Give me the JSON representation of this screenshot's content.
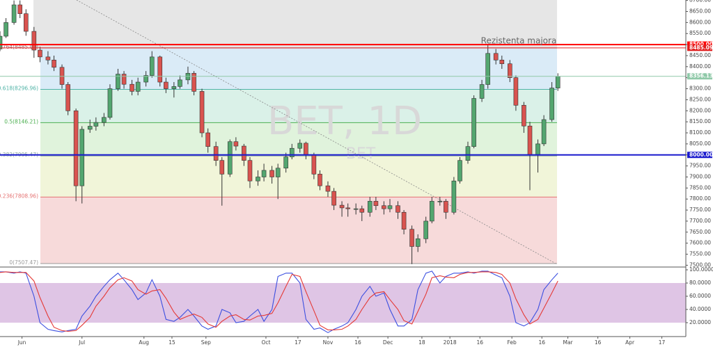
{
  "chart_data": [
    {
      "type": "candlestick",
      "title": "BET, 1D",
      "subtitle": "BET",
      "annotation": "Rezistenta majora",
      "up_color": "#53a66f",
      "down_color": "#d9534f",
      "x": [
        "2017-05-21",
        "2017-05-24",
        "2017-05-28",
        "2017-05-31",
        "2017-06-03",
        "2017-06-07",
        "2017-06-10",
        "2017-06-14",
        "2017-06-17",
        "2017-06-21",
        "2017-06-24",
        "2017-06-28",
        "2017-07-01",
        "2017-07-05",
        "2017-07-08",
        "2017-07-12",
        "2017-07-15",
        "2017-07-19",
        "2017-07-22",
        "2017-07-26",
        "2017-07-29",
        "2017-08-02",
        "2017-08-05",
        "2017-08-09",
        "2017-08-12",
        "2017-08-16",
        "2017-08-19",
        "2017-08-23",
        "2017-08-26",
        "2017-08-30",
        "2017-09-02",
        "2017-09-06",
        "2017-09-09",
        "2017-09-13",
        "2017-09-16",
        "2017-09-20",
        "2017-09-23",
        "2017-09-27",
        "2017-09-30",
        "2017-10-04",
        "2017-10-07",
        "2017-10-11",
        "2017-10-14",
        "2017-10-18",
        "2017-10-21",
        "2017-10-25",
        "2017-10-28",
        "2017-11-01",
        "2017-11-04",
        "2017-11-08",
        "2017-11-11",
        "2017-11-15",
        "2017-11-18",
        "2017-11-22",
        "2017-11-25",
        "2017-11-29",
        "2017-12-02",
        "2017-12-06",
        "2017-12-09",
        "2017-12-13",
        "2017-12-16",
        "2017-12-20",
        "2017-12-23",
        "2017-12-27",
        "2017-12-30",
        "2018-01-03",
        "2018-01-06",
        "2018-01-10",
        "2018-01-13",
        "2018-01-17",
        "2018-01-20",
        "2018-01-24",
        "2018-01-27",
        "2018-01-31",
        "2018-02-03",
        "2018-02-07",
        "2018-02-10",
        "2018-02-14",
        "2018-02-17",
        "2018-02-21",
        "2018-02-24"
      ],
      "open": [
        8480,
        8538,
        8600,
        8680,
        8640,
        8560,
        8475,
        8444,
        8430,
        8397,
        8319,
        8200,
        7860,
        8116,
        8130,
        8147,
        8170,
        8300,
        8366,
        8320,
        8288,
        8330,
        8360,
        8444,
        8330,
        8300,
        8310,
        8340,
        8370,
        8288,
        8100,
        8038,
        7975,
        7913,
        8060,
        8040,
        7975,
        7882,
        7900,
        7930,
        7900,
        7940,
        7991,
        8030,
        8053,
        8000,
        7913,
        7860,
        7835,
        7772,
        7760,
        7756,
        7756,
        7740,
        7790,
        7770,
        7756,
        7770,
        7740,
        7663,
        7585,
        7620,
        7700,
        7790,
        7790,
        7740,
        7882,
        7975,
        8038,
        8256,
        8319,
        8460,
        8430,
        8413,
        8350,
        8225,
        8131,
        8000,
        8050,
        8160,
        8303
      ],
      "high": [
        8560,
        8620,
        8700,
        8700,
        8660,
        8580,
        8490,
        8470,
        8450,
        8410,
        8330,
        8210,
        8130,
        8160,
        8170,
        8190,
        8320,
        8390,
        8380,
        8340,
        8350,
        8380,
        8470,
        8450,
        8350,
        8330,
        8360,
        8400,
        8380,
        8300,
        8120,
        8060,
        7990,
        8070,
        8080,
        8050,
        7990,
        7930,
        7960,
        7950,
        7960,
        8010,
        8050,
        8070,
        8060,
        8010,
        7930,
        7880,
        7850,
        7790,
        7780,
        7780,
        7770,
        7810,
        7810,
        7790,
        7800,
        7790,
        7750,
        7680,
        7640,
        7720,
        7810,
        7810,
        7800,
        7900,
        7990,
        8060,
        8270,
        8340,
        8500,
        8480,
        8450,
        8430,
        8360,
        8240,
        8150,
        8070,
        8180,
        8330,
        8370
      ],
      "low": [
        8470,
        8530,
        8590,
        8620,
        8540,
        8440,
        8420,
        8410,
        8380,
        8300,
        8180,
        7790,
        7780,
        8100,
        8110,
        8130,
        8160,
        8290,
        8300,
        8270,
        8270,
        8310,
        8350,
        8310,
        8280,
        8260,
        8300,
        8320,
        8270,
        8080,
        8010,
        7950,
        7770,
        7900,
        8020,
        7950,
        7850,
        7860,
        7880,
        7870,
        7800,
        7920,
        7980,
        8010,
        7980,
        7890,
        7840,
        7810,
        7750,
        7720,
        7720,
        7730,
        7700,
        7720,
        7750,
        7730,
        7740,
        7710,
        7640,
        7505,
        7560,
        7600,
        7690,
        7770,
        7710,
        7730,
        7870,
        7960,
        8030,
        8240,
        8300,
        8410,
        8390,
        8330,
        8200,
        8100,
        7840,
        7920,
        8040,
        8150,
        8290
      ],
      "close": [
        8538,
        8600,
        8680,
        8640,
        8560,
        8475,
        8444,
        8430,
        8397,
        8319,
        8200,
        7860,
        8116,
        8130,
        8147,
        8170,
        8300,
        8366,
        8320,
        8288,
        8330,
        8360,
        8444,
        8330,
        8300,
        8310,
        8340,
        8370,
        8288,
        8100,
        8038,
        7975,
        7913,
        8060,
        8040,
        7975,
        7882,
        7900,
        7930,
        7900,
        7940,
        7991,
        8030,
        8053,
        8000,
        7913,
        7860,
        7835,
        7772,
        7760,
        7756,
        7756,
        7740,
        7790,
        7770,
        7756,
        7770,
        7740,
        7663,
        7585,
        7620,
        7700,
        7790,
        7790,
        7740,
        7882,
        7975,
        8038,
        8256,
        8319,
        8460,
        8430,
        8413,
        8350,
        8225,
        8131,
        8000,
        8050,
        8160,
        8303,
        8356.13
      ],
      "xlim": [
        "2017-05-21",
        "2018-04-29"
      ],
      "xticks": [
        {
          "value": "2017-06-01",
          "label": "Jun"
        },
        {
          "value": "2017-07-01",
          "label": "Jul"
        },
        {
          "value": "2017-08-01",
          "label": "Aug"
        },
        {
          "value": "2017-08-15",
          "label": "15"
        },
        {
          "value": "2017-09-01",
          "label": "Sep"
        },
        {
          "value": "2017-10-01",
          "label": "Oct"
        },
        {
          "value": "2017-10-17",
          "label": "17"
        },
        {
          "value": "2017-11-01",
          "label": "Nov"
        },
        {
          "value": "2017-11-16",
          "label": "16"
        },
        {
          "value": "2017-12-01",
          "label": "Dec"
        },
        {
          "value": "2017-12-18",
          "label": "18"
        },
        {
          "value": "2018-01-01",
          "label": "2018"
        },
        {
          "value": "2018-01-16",
          "label": "16"
        },
        {
          "value": "2018-02-01",
          "label": "Feb"
        },
        {
          "value": "2018-02-16",
          "label": "16"
        },
        {
          "value": "2018-03-01",
          "label": "Mar"
        },
        {
          "value": "2018-03-16",
          "label": "16"
        },
        {
          "value": "2018-04-01",
          "label": "Apr"
        },
        {
          "value": "2018-04-17",
          "label": "17"
        }
      ],
      "ylim": [
        7495,
        8702
      ],
      "yticks": [
        {
          "value": 7500,
          "label": "7500.00"
        },
        {
          "value": 7550,
          "label": "7550.00"
        },
        {
          "value": 7600,
          "label": "7600.00"
        },
        {
          "value": 7650,
          "label": "7650.00"
        },
        {
          "value": 7700,
          "label": "7700.00"
        },
        {
          "value": 7750,
          "label": "7750.00"
        },
        {
          "value": 7800,
          "label": "7800.00"
        },
        {
          "value": 7850,
          "label": "7850.00"
        },
        {
          "value": 7900,
          "label": "7900.00"
        },
        {
          "value": 7950,
          "label": "7950.00"
        },
        {
          "value": 8000,
          "label": "8000.00"
        },
        {
          "value": 8050,
          "label": "8050.00"
        },
        {
          "value": 8100,
          "label": "8100.00"
        },
        {
          "value": 8150,
          "label": "8150.00"
        },
        {
          "value": 8200,
          "label": "8200.00"
        },
        {
          "value": 8250,
          "label": "8250.00"
        },
        {
          "value": 8300,
          "label": "8300.00"
        },
        {
          "value": 8350,
          "label": "8350.00"
        },
        {
          "value": 8400,
          "label": "8400.00"
        },
        {
          "value": 8450,
          "label": "8450.00"
        },
        {
          "value": 8500,
          "label": "8500.00"
        },
        {
          "value": 8550,
          "label": "8550.00"
        },
        {
          "value": 8600,
          "label": "8600.00"
        },
        {
          "value": 8650,
          "label": "8650.00"
        },
        {
          "value": 8700,
          "label": "8700.00"
        }
      ],
      "fib_levels": [
        {
          "value": 8485.09,
          "label": "0.764(8485.09)",
          "color": "#9a6a6a",
          "fill": "#d4e8f6"
        },
        {
          "value": 8296.96,
          "label": "0.618(8296.96)",
          "color": "#4fb3a6",
          "fill": "#d3efe4"
        },
        {
          "value": 8146.21,
          "label": "0.5(8146.21)",
          "color": "#4caf50",
          "fill": "#daf1d6"
        },
        {
          "value": 7995.47,
          "label": "0.382(7995.47)",
          "color": "#8aa8a0",
          "fill": "#eef3d2"
        },
        {
          "value": 7808.96,
          "label": "0.236(7808.96)",
          "color": "#e57373",
          "fill": "#f6d3d3"
        },
        {
          "value": 7507.47,
          "label": "0(7507.47)",
          "color": "#999999"
        }
      ],
      "price_lines": [
        {
          "value": 8500,
          "label": "8500.00",
          "color": "#ff0000",
          "width": 2
        },
        {
          "value": 8485.09,
          "label": "8485.09",
          "color": "#e02020",
          "width": 1
        },
        {
          "value": 8356.13,
          "label": "8356.13",
          "color": "#8fc9a8",
          "width": 1
        },
        {
          "value": 8000,
          "label": "8000.00",
          "color": "#1a1acd",
          "width": 2
        }
      ]
    },
    {
      "type": "line",
      "ylim": [
        0,
        100
      ],
      "yticks": [
        {
          "value": 20,
          "label": "20.0000"
        },
        {
          "value": 40,
          "label": "40.0000"
        },
        {
          "value": 60,
          "label": "60.0000"
        },
        {
          "value": 80,
          "label": "80.0000"
        },
        {
          "value": 100,
          "label": "100.0000"
        }
      ],
      "band": [
        20,
        80
      ],
      "band_color": "#d7b6de",
      "series": [
        {
          "color": "#3b4fe0",
          "values": [
            97,
            97,
            95,
            97,
            95,
            60,
            20,
            10,
            8,
            6,
            8,
            10,
            30,
            45,
            60,
            75,
            85,
            95,
            85,
            70,
            55,
            65,
            85,
            60,
            25,
            22,
            28,
            40,
            30,
            15,
            10,
            15,
            40,
            35,
            20,
            22,
            30,
            40,
            22,
            40,
            90,
            95,
            95,
            80,
            25,
            10,
            12,
            5,
            10,
            15,
            20,
            40,
            60,
            75,
            60,
            65,
            40,
            15,
            15,
            25,
            70,
            95,
            98,
            80,
            90,
            95,
            95,
            97,
            95,
            98,
            98,
            92,
            88,
            60,
            20,
            15,
            20,
            40,
            70,
            85,
            95
          ]
        },
        {
          "color": "#e53935",
          "values": [
            96,
            97,
            96,
            96,
            96,
            83,
            58,
            30,
            13,
            8,
            7,
            8,
            16,
            28,
            45,
            60,
            73,
            85,
            88,
            83,
            70,
            63,
            68,
            70,
            57,
            36,
            25,
            30,
            33,
            28,
            18,
            13,
            22,
            30,
            32,
            25,
            24,
            30,
            31,
            34,
            50,
            75,
            93,
            90,
            67,
            38,
            16,
            9,
            9,
            10,
            15,
            25,
            40,
            58,
            65,
            67,
            55,
            40,
            23,
            18,
            37,
            63,
            88,
            91,
            89,
            88,
            93,
            96,
            96,
            97,
            97,
            96,
            93,
            80,
            56,
            32,
            18,
            25,
            42,
            65,
            83
          ]
        }
      ]
    }
  ]
}
